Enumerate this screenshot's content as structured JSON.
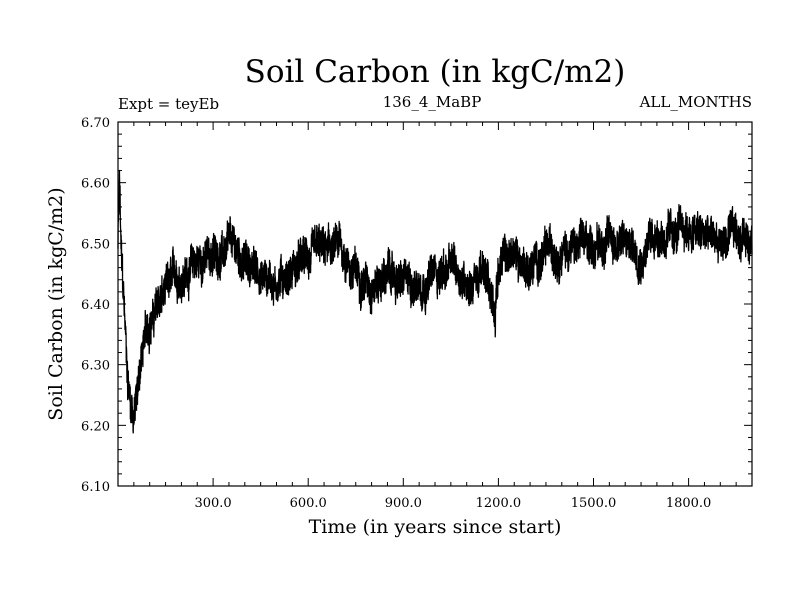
{
  "chart_data": {
    "type": "line",
    "title": "Soil Carbon (in kgC/m2)",
    "subtitle_left": "Expt = teyEb",
    "subtitle_center": "136_4_MaBP",
    "subtitle_right": "ALL_MONTHS",
    "xlabel": "Time (in years since start)",
    "ylabel": "Soil Carbon (in kgC/m2)",
    "xlim": [
      0,
      2000
    ],
    "ylim": [
      6.1,
      6.7
    ],
    "xticks": [
      300,
      600,
      900,
      1200,
      1500,
      1800
    ],
    "xtick_labels": [
      "300.0",
      "600.0",
      "900.0",
      "1200.0",
      "1500.0",
      "1800.0"
    ],
    "yticks": [
      6.1,
      6.2,
      6.3,
      6.4,
      6.5,
      6.6,
      6.7
    ],
    "ytick_labels": [
      "6.10",
      "6.20",
      "6.30",
      "6.40",
      "6.50",
      "6.60",
      "6.70"
    ],
    "series": [
      {
        "name": "Soil Carbon",
        "color": "#000000",
        "x": [
          0,
          5,
          10,
          20,
          30,
          40,
          50,
          60,
          70,
          80,
          90,
          100,
          120,
          140,
          160,
          180,
          200,
          250,
          300,
          350,
          400,
          450,
          500,
          550,
          600,
          650,
          700,
          750,
          800,
          850,
          900,
          950,
          1000,
          1050,
          1100,
          1150,
          1190,
          1200,
          1250,
          1300,
          1350,
          1400,
          1450,
          1500,
          1550,
          1600,
          1650,
          1700,
          1750,
          1800,
          1850,
          1900,
          1950,
          2000
        ],
        "y": [
          6.5,
          6.6,
          6.48,
          6.38,
          6.28,
          6.24,
          6.22,
          6.25,
          6.3,
          6.33,
          6.35,
          6.37,
          6.39,
          6.41,
          6.42,
          6.44,
          6.45,
          6.47,
          6.48,
          6.49,
          6.47,
          6.45,
          6.44,
          6.46,
          6.47,
          6.48,
          6.49,
          6.45,
          6.44,
          6.45,
          6.43,
          6.44,
          6.45,
          6.46,
          6.44,
          6.45,
          6.4,
          6.47,
          6.48,
          6.46,
          6.48,
          6.5,
          6.49,
          6.5,
          6.51,
          6.5,
          6.49,
          6.52,
          6.51,
          6.52,
          6.51,
          6.5,
          6.51,
          6.52
        ],
        "noise_amplitude": 0.035
      }
    ]
  }
}
